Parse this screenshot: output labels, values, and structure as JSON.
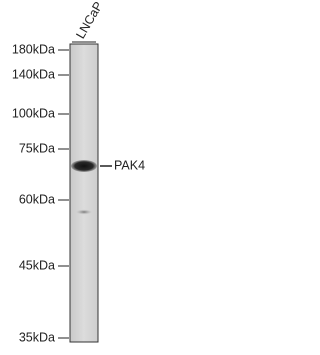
{
  "lane_label": "LNCaP",
  "markers": [
    "180kDa",
    "140kDa",
    "100kDa",
    "75kDa",
    "60kDa",
    "45kDa",
    "35kDa"
  ],
  "band_label": "PAK4"
}
